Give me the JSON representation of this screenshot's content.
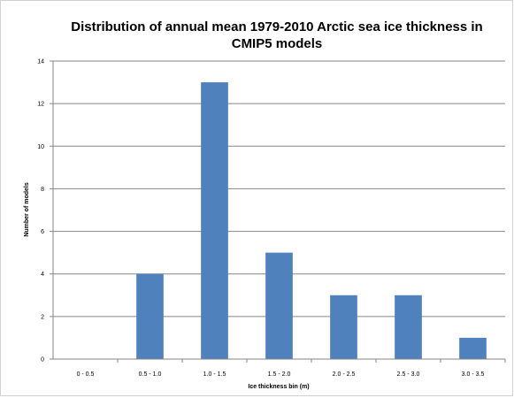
{
  "chart_data": {
    "type": "bar",
    "title_lines": [
      "Distribution of annual mean 1979-2010 Arctic sea ice thickness in",
      "CMIP5 models"
    ],
    "xlabel": "Ice thickness bin (m)",
    "ylabel": "Number of models",
    "categories": [
      "0 - 0.5",
      "0.5 - 1.0",
      "1.0 - 1.5",
      "1.5 - 2.0",
      "2.0 - 2.5",
      "2.5 - 3.0",
      "3.0 - 3.5"
    ],
    "values": [
      0,
      4,
      13,
      5,
      3,
      3,
      1
    ],
    "ylim": [
      0,
      14
    ],
    "yticks": [
      "0",
      "2",
      "4",
      "6",
      "8",
      "10",
      "12",
      "14"
    ],
    "grid": true,
    "bar_color": "#4f81bd"
  }
}
